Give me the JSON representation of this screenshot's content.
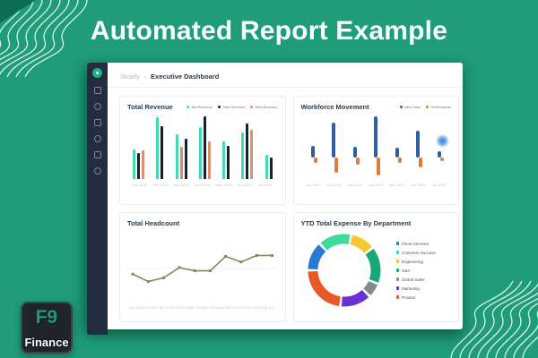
{
  "page": {
    "title": "Automated Report Example"
  },
  "watermark": {
    "line1": "F9",
    "line2": "Finance"
  },
  "app": {
    "breadcrumb": {
      "product": "Stratify",
      "separator": "›",
      "page": "Executive Dashboard"
    },
    "sidebar": {
      "logo_icon": "stratify-logo-icon",
      "icons": [
        "dashboard-icon",
        "documents-icon",
        "clock-icon",
        "grid-icon",
        "chart-icon",
        "settings-icon"
      ]
    }
  },
  "colors": {
    "background": "#1f9c78",
    "sidebar": "#232d3f",
    "accent": "#21b182",
    "glow_dot": "#2f7de1"
  },
  "chart_data": [
    {
      "type": "bar",
      "title": "Total Revenue",
      "legend": [
        {
          "name": "Net Revenue",
          "color": "#45d9b4"
        },
        {
          "name": "Total Revenue",
          "color": "#16222e"
        },
        {
          "name": "New Revenue",
          "color": "#d98f70"
        }
      ],
      "categories": [
        "Jan 2023",
        "Feb 2023",
        "Mar 2023",
        "Apr 2023",
        "May 2023",
        "Jun 2023",
        "Jul 2023"
      ],
      "groups": [
        [
          {
            "color": "#45d9b4",
            "value": 46
          },
          {
            "color": "#16222e",
            "value": 40
          },
          {
            "color": "#d98f70",
            "value": 44
          }
        ],
        [
          {
            "color": "#45d9b4",
            "value": 96
          },
          {
            "color": "#16222e",
            "value": 82
          }
        ],
        [
          {
            "color": "#45d9b4",
            "value": 70
          },
          {
            "color": "#d98f70",
            "value": 50
          },
          {
            "color": "#16222e",
            "value": 62
          }
        ],
        [
          {
            "color": "#45d9b4",
            "value": 80
          },
          {
            "color": "#16222e",
            "value": 97
          },
          {
            "color": "#d98f70",
            "value": 58
          }
        ],
        [
          {
            "color": "#45d9b4",
            "value": 58
          },
          {
            "color": "#16222e",
            "value": 52
          }
        ],
        [
          {
            "color": "#45d9b4",
            "value": 72
          },
          {
            "color": "#16222e",
            "value": 86
          },
          {
            "color": "#d98f70",
            "value": 76
          }
        ],
        [
          {
            "color": "#45d9b4",
            "value": 38
          },
          {
            "color": "#16222e",
            "value": 33
          }
        ]
      ],
      "ylim": [
        0,
        100
      ],
      "grid": false,
      "legend_position": "top-right"
    },
    {
      "type": "bar",
      "title": "Workforce Movement",
      "legend": [
        {
          "name": "New Hires",
          "color": "#2e5fa3"
        },
        {
          "name": "Terminations",
          "color": "#e07b39"
        }
      ],
      "categories": [
        "Jan 2023",
        "Feb 2023",
        "Mar 2023",
        "Apr 2023",
        "May 2023",
        "Jun 2023",
        "Jul 2023"
      ],
      "series": [
        {
          "name": "New Hires",
          "color": "#2e5fa3",
          "values": [
            18,
            52,
            16,
            62,
            15,
            40,
            10
          ]
        },
        {
          "name": "Terminations",
          "color": "#e07b39",
          "values": [
            -8,
            -22,
            -10,
            -26,
            -8,
            -15,
            -5
          ]
        }
      ],
      "ylim": [
        -30,
        70
      ],
      "grid": false,
      "legend_position": "top-right"
    },
    {
      "type": "line",
      "title": "Total Headcount",
      "color": "#7d8b5a",
      "categories": [
        "Nov 2022",
        "Dec 2022",
        "Jan 2023",
        "Feb 2023",
        "Mar 2023",
        "Apr 2023",
        "May 2023",
        "Jun 2023",
        "Jul 2023",
        "Aug 2023"
      ],
      "values": [
        38,
        22,
        30,
        52,
        45,
        45,
        76,
        64,
        78,
        78
      ],
      "ylim": [
        0,
        100
      ],
      "grid": true,
      "legend_position": "none"
    },
    {
      "type": "pie",
      "title": "YTD Total Expense By Department",
      "labels": [
        "Client Services",
        "Customer Success",
        "Engineering",
        "G&A",
        "Global Sales",
        "Marketing",
        "Product"
      ],
      "values": [
        13,
        15,
        11,
        17,
        6,
        14,
        24
      ],
      "colors": [
        "#2979d0",
        "#3edc9b",
        "#f5c932",
        "#16a976",
        "#7f8c8d",
        "#6b2fd6",
        "#e8592a"
      ],
      "legend_position": "right"
    }
  ]
}
